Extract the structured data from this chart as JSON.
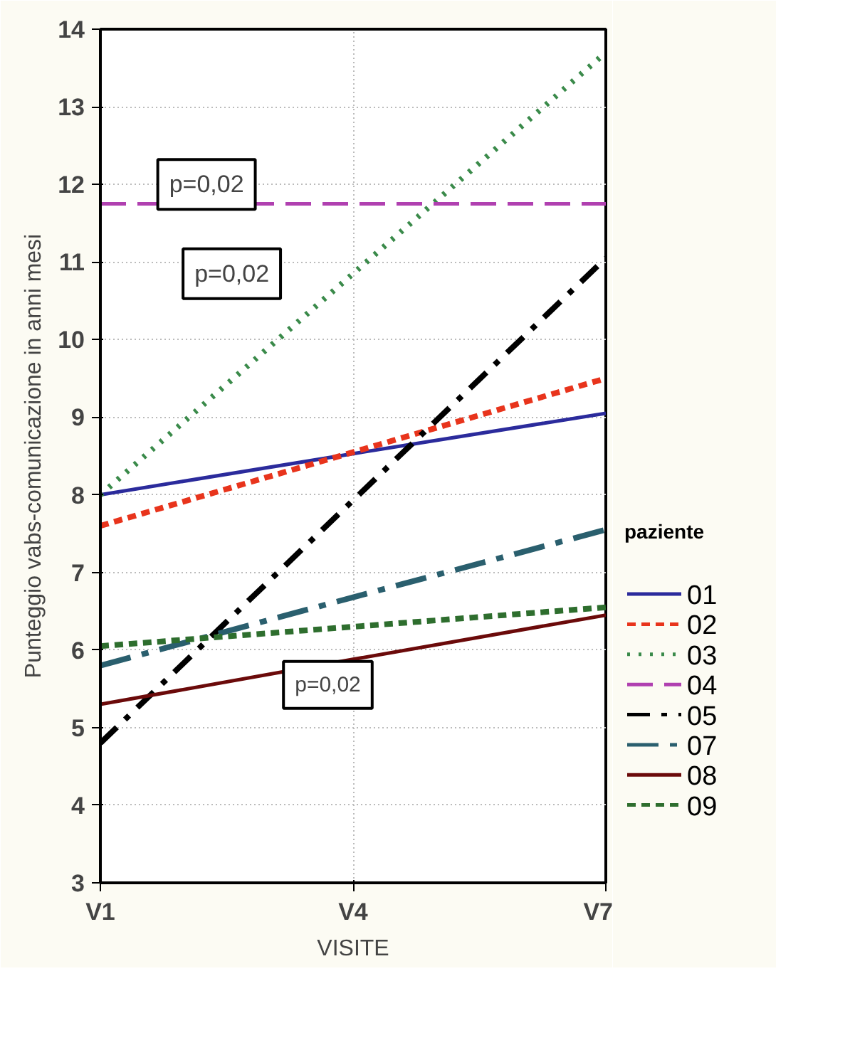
{
  "chart_data": {
    "type": "line",
    "xlabel": "VISITE",
    "ylabel": "Punteggio vabs-comunicazione in anni mesi",
    "legend_title": "paziente",
    "legend": "right",
    "categories": [
      "V1",
      "V4",
      "V7"
    ],
    "ylim": [
      3,
      14
    ],
    "yticks": [
      3,
      4,
      5,
      6,
      7,
      8,
      9,
      10,
      11,
      12,
      13,
      14
    ],
    "grid": true,
    "annotations": [
      "p=0,02",
      "p=0,02",
      "p=0,02"
    ],
    "series": [
      {
        "name": "01",
        "color": "#2b2b9c",
        "values": [
          8.0,
          8.53,
          9.05
        ],
        "line_style": "solid"
      },
      {
        "name": "02",
        "color": "#e8341c",
        "values": [
          7.6,
          8.55,
          9.5
        ],
        "line_style": "dashed"
      },
      {
        "name": "03",
        "color": "#3a8a4a",
        "values": [
          8.0,
          10.85,
          13.7
        ],
        "line_style": "dotted"
      },
      {
        "name": "04",
        "color": "#b040b0",
        "values": [
          11.75,
          11.75,
          11.75
        ],
        "line_style": "longdash"
      },
      {
        "name": "05",
        "color": "#000000",
        "values": [
          4.8,
          7.93,
          11.05
        ],
        "line_style": "dashdot"
      },
      {
        "name": "07",
        "color": "#2a5f6e",
        "values": [
          5.8,
          6.68,
          7.55
        ],
        "line_style": "longdashdot"
      },
      {
        "name": "08",
        "color": "#6b0a0a",
        "values": [
          5.3,
          5.88,
          6.45
        ],
        "line_style": "solid"
      },
      {
        "name": "09",
        "color": "#2e6e2e",
        "values": [
          6.05,
          6.3,
          6.55
        ],
        "line_style": "dashed"
      }
    ]
  }
}
